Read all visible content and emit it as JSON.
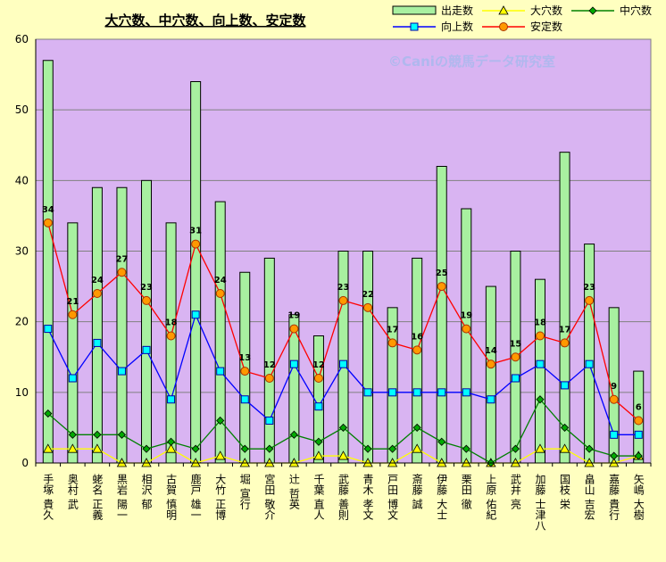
{
  "chart_data": {
    "type": "bar",
    "title": "大穴数、中穴数、向上数、安定数",
    "watermark": "©Caniの競馬データ研究室",
    "ylim": [
      0,
      60
    ],
    "yticks": [
      0,
      10,
      20,
      30,
      40,
      50,
      60
    ],
    "grid": true,
    "legend": "top",
    "categories": [
      "手塚 貴久",
      "奥村 武",
      "蛯名 正義",
      "黒岩 陽一",
      "相沢 郁",
      "古賀 慎明",
      "鹿戸 雄一",
      "大竹 正博",
      "堀 宣行",
      "宮田 敬介",
      "辻 哲英",
      "千葉 直人",
      "武藤 善則",
      "青木 孝文",
      "戸田 博文",
      "斎藤 誠",
      "伊藤 大士",
      "栗田 徹",
      "上原 佑紀",
      "武井 亮",
      "加藤 士津八",
      "国枝 栄",
      "畠山 吉宏",
      "嘉藤 貴行",
      "矢嶋 大樹"
    ],
    "series": [
      {
        "name": "出走数",
        "kind": "bar",
        "color": "#a8f0a0",
        "values": [
          57,
          34,
          39,
          39,
          40,
          34,
          54,
          37,
          27,
          29,
          21,
          18,
          30,
          30,
          22,
          29,
          42,
          36,
          25,
          30,
          26,
          44,
          31,
          22,
          13
        ]
      },
      {
        "name": "大穴数",
        "kind": "line",
        "color": "#ffff00",
        "values": [
          2,
          2,
          2,
          0,
          0,
          2,
          0,
          1,
          0,
          0,
          0,
          1,
          1,
          0,
          0,
          2,
          0,
          0,
          0,
          0,
          2,
          2,
          0,
          0,
          1
        ]
      },
      {
        "name": "中穴数",
        "kind": "line",
        "color": "#008000",
        "values": [
          7,
          4,
          4,
          4,
          2,
          3,
          2,
          6,
          2,
          2,
          4,
          3,
          5,
          2,
          2,
          5,
          3,
          2,
          0,
          2,
          9,
          5,
          2,
          1,
          1
        ]
      },
      {
        "name": "向上数",
        "kind": "line",
        "color": "#0000ff",
        "values": [
          19,
          12,
          17,
          13,
          16,
          9,
          21,
          13,
          9,
          6,
          14,
          8,
          14,
          10,
          10,
          10,
          10,
          10,
          9,
          12,
          14,
          11,
          14,
          4,
          4
        ]
      },
      {
        "name": "安定数",
        "kind": "line",
        "color": "#ff0000",
        "labels": true,
        "values": [
          34,
          21,
          24,
          27,
          23,
          18,
          31,
          24,
          13,
          12,
          19,
          12,
          23,
          22,
          17,
          16,
          25,
          19,
          14,
          15,
          18,
          17,
          23,
          9,
          6
        ]
      }
    ]
  }
}
